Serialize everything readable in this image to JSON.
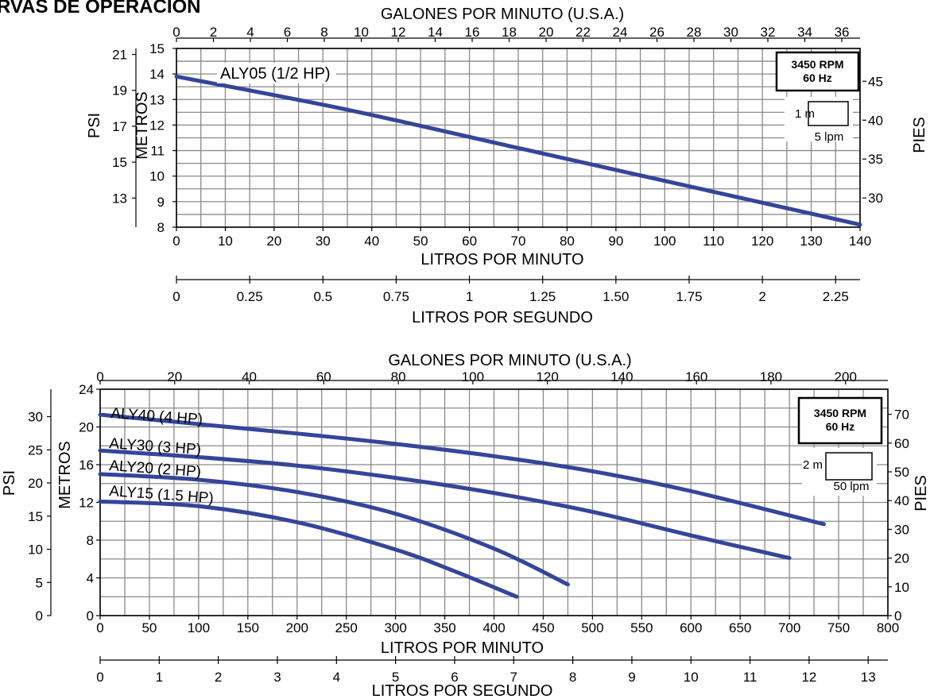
{
  "page": {
    "title": "RVAS DE OPERACION"
  },
  "chart_data": [
    {
      "type": "line",
      "top_axis_label": "GALONES POR MINUTO (U.S.A.)",
      "top_ticks": [
        "0",
        "2",
        "4",
        "6",
        "8",
        "10",
        "12",
        "14",
        "16",
        "18",
        "20",
        "22",
        "24",
        "26",
        "28",
        "30",
        "32",
        "34",
        "36"
      ],
      "x_range": [
        0,
        140
      ],
      "xlabel": "LITROS POR MINUTO",
      "x_ticks": [
        "0",
        "10",
        "20",
        "30",
        "40",
        "50",
        "60",
        "70",
        "80",
        "90",
        "100",
        "110",
        "120",
        "130",
        "140"
      ],
      "lps_label": "LITROS POR SEGUNDO",
      "lps_ticks": [
        "0",
        "0.25",
        "0.5",
        "0.75",
        "1",
        "1.25",
        "1.50",
        "1.75",
        "2",
        "2.25"
      ],
      "y_range": [
        8,
        15
      ],
      "ylabel_metros": "METROS",
      "metros_ticks": [
        "8",
        "9",
        "10",
        "11",
        "12",
        "13",
        "14",
        "15"
      ],
      "ylabel_psi": "PSI",
      "psi_ticks": [
        "13",
        "15",
        "17",
        "19",
        "21"
      ],
      "ylabel_pies": "PIES",
      "pies_ticks": [
        "30",
        "35",
        "40",
        "45"
      ],
      "badge": [
        "3450 RPM",
        "60 Hz"
      ],
      "grid_key": {
        "vertical": "1 m",
        "horizontal": "5 lpm"
      },
      "series": [
        {
          "name": "ALY05 (1/2 HP)",
          "x": [
            0,
            35,
            70,
            105,
            140
          ],
          "y": [
            13.9,
            12.6,
            11.1,
            9.6,
            8.1
          ]
        }
      ]
    },
    {
      "type": "line",
      "top_axis_label": "GALONES POR MINUTO (U.S.A.)",
      "top_ticks": [
        "0",
        "20",
        "40",
        "60",
        "80",
        "100",
        "120",
        "140",
        "160",
        "180",
        "200"
      ],
      "x_range": [
        0,
        800
      ],
      "xlabel": "LITROS POR MINUTO",
      "x_ticks": [
        "0",
        "50",
        "100",
        "150",
        "200",
        "250",
        "300",
        "350",
        "400",
        "450",
        "500",
        "550",
        "600",
        "650",
        "700",
        "750",
        "800"
      ],
      "lps_label": "LITROS POR SEGUNDO",
      "lps_ticks": [
        "0",
        "1",
        "2",
        "3",
        "4",
        "5",
        "6",
        "7",
        "8",
        "9",
        "10",
        "11",
        "12",
        "13"
      ],
      "y_range": [
        0,
        24
      ],
      "ylabel_metros": "METROS",
      "metros_ticks": [
        "0",
        "4",
        "8",
        "12",
        "16",
        "20",
        "24"
      ],
      "ylabel_psi": "PSI",
      "psi_ticks": [
        "0",
        "5",
        "10",
        "15",
        "20",
        "25",
        "30"
      ],
      "ylabel_pies": "PIES",
      "pies_ticks": [
        "0",
        "10",
        "20",
        "30",
        "40",
        "50",
        "60",
        "70"
      ],
      "badge": [
        "3450 RPM",
        "60 Hz"
      ],
      "grid_key": {
        "vertical": "2 m",
        "horizontal": "50 lpm"
      },
      "series": [
        {
          "name": "ALY40 (4 HP)",
          "x": [
            0,
            100,
            200,
            300,
            400,
            500,
            600,
            735
          ],
          "y": [
            21.3,
            20.3,
            19.3,
            18.2,
            16.9,
            15.3,
            13.2,
            9.7
          ]
        },
        {
          "name": "ALY30 (3 HP)",
          "x": [
            0,
            100,
            200,
            300,
            400,
            500,
            600,
            700
          ],
          "y": [
            17.5,
            16.8,
            15.9,
            14.6,
            13.0,
            11.0,
            8.5,
            6.1
          ]
        },
        {
          "name": "ALY20 (2 HP)",
          "x": [
            0,
            100,
            200,
            300,
            400,
            475
          ],
          "y": [
            15.0,
            14.4,
            13.1,
            10.8,
            7.1,
            3.3
          ]
        },
        {
          "name": "ALY15 (1.5 HP)",
          "x": [
            0,
            100,
            200,
            300,
            360,
            423
          ],
          "y": [
            12.1,
            11.6,
            9.9,
            7.0,
            4.7,
            2.0
          ]
        }
      ]
    }
  ]
}
